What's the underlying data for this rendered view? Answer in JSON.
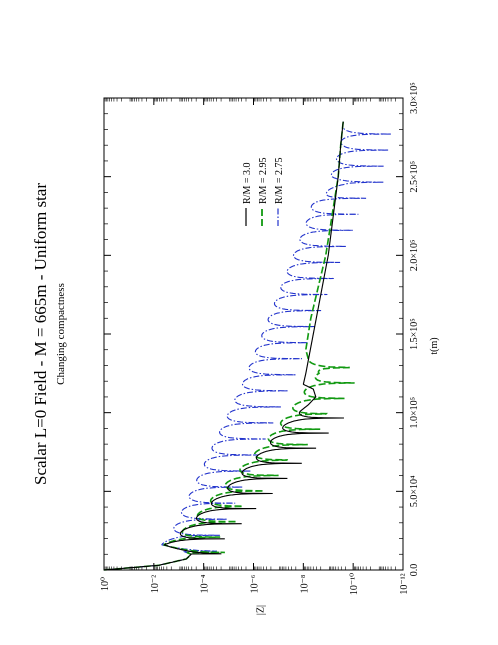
{
  "chart_data": {
    "type": "line",
    "title": "Scalar L=0 Field - M = 665m - Uniform star",
    "subtitle": "Changing compactness",
    "xlabel": "t(m)",
    "ylabel": "|Z|",
    "x_scale": "linear",
    "y_scale": "log",
    "xlim": [
      0,
      300000
    ],
    "ylim_exponent": [
      -12,
      0
    ],
    "x_ticks": [
      {
        "value": 0,
        "label": "0.0"
      },
      {
        "value": 50000,
        "label": "5.0×10⁴"
      },
      {
        "value": 100000,
        "label": "1.0×10⁵"
      },
      {
        "value": 150000,
        "label": "1.5×10⁵"
      },
      {
        "value": 200000,
        "label": "2.0×10⁵"
      },
      {
        "value": 250000,
        "label": "2.5×10⁵"
      },
      {
        "value": 300000,
        "label": "3.0×10⁵"
      }
    ],
    "y_ticks": [
      {
        "exp": 0,
        "label": "10⁰"
      },
      {
        "exp": -2,
        "label": "10⁻²"
      },
      {
        "exp": -4,
        "label": "10⁻⁴"
      },
      {
        "exp": -6,
        "label": "10⁻⁶"
      },
      {
        "exp": -8,
        "label": "10⁻⁸"
      },
      {
        "exp": -10,
        "label": "10⁻¹⁰"
      },
      {
        "exp": -12,
        "label": "10⁻¹²"
      }
    ],
    "legend_position": "top-right",
    "grid": false,
    "orientation": "rotated-90-ccw",
    "series": [
      {
        "name": "R/M = 3.0",
        "color": "#000000",
        "style": "solid",
        "peak_start": 15000,
        "peak_period": 9600,
        "peak_count": 9,
        "node_depth_exp": 2.3,
        "x": [
          0,
          3000,
          7000,
          10000,
          13000,
          16000,
          20000,
          30000,
          40000,
          50000,
          60000,
          70000,
          80000,
          90000,
          100000,
          105000,
          110000,
          115000,
          118000,
          125000,
          150000,
          200000,
          250000,
          270000,
          285000
        ],
        "log10_y": [
          0,
          -2.2,
          -3.3,
          -3.5,
          -3.0,
          -2.4,
          -2.8,
          -3.5,
          -4.1,
          -4.8,
          -5.4,
          -6.0,
          -6.6,
          -7.1,
          -7.8,
          -8.2,
          -8.5,
          -8.4,
          -8.0,
          -8.1,
          -8.4,
          -9.0,
          -9.4,
          -9.5,
          -9.6
        ]
      },
      {
        "name": "R/M = 2.95",
        "color": "#119911",
        "style": "dashed",
        "peak_start": 16000,
        "peak_period": 9800,
        "peak_count": 12,
        "node_depth_exp": 2.0,
        "x": [
          0,
          3000,
          7000,
          10000,
          13000,
          16000,
          20000,
          30000,
          40000,
          50000,
          60000,
          70000,
          80000,
          90000,
          100000,
          110000,
          120000,
          125000,
          128000,
          140000,
          160000,
          200000,
          250000,
          270000,
          285000
        ],
        "log10_y": [
          0,
          -2.2,
          -3.3,
          -3.5,
          -3.0,
          -2.4,
          -2.8,
          -3.5,
          -4.0,
          -4.6,
          -5.2,
          -5.8,
          -6.4,
          -6.9,
          -7.4,
          -7.9,
          -8.3,
          -8.6,
          -8.3,
          -8.1,
          -8.3,
          -8.9,
          -9.4,
          -9.5,
          -9.6
        ]
      },
      {
        "name": "R/M = 2.75",
        "color": "#2233cc",
        "style": "dash-dot",
        "peak_start": 17000,
        "peak_period": 10200,
        "peak_count": 26,
        "node_depth_exp": 2.5,
        "x": [
          0,
          3000,
          7000,
          10000,
          13000,
          16000,
          20000,
          40000,
          60000,
          80000,
          100000,
          120000,
          140000,
          160000,
          180000,
          200000,
          220000,
          235000,
          240000,
          245000,
          250000,
          260000,
          270000,
          285000
        ],
        "log10_y": [
          0,
          -2.2,
          -3.3,
          -3.5,
          -3.0,
          -2.3,
          -2.6,
          -3.2,
          -3.8,
          -4.4,
          -5.0,
          -5.6,
          -6.1,
          -6.6,
          -7.1,
          -7.6,
          -8.1,
          -8.4,
          -8.9,
          -9.3,
          -9.1,
          -9.3,
          -9.5,
          -9.6
        ]
      }
    ]
  }
}
